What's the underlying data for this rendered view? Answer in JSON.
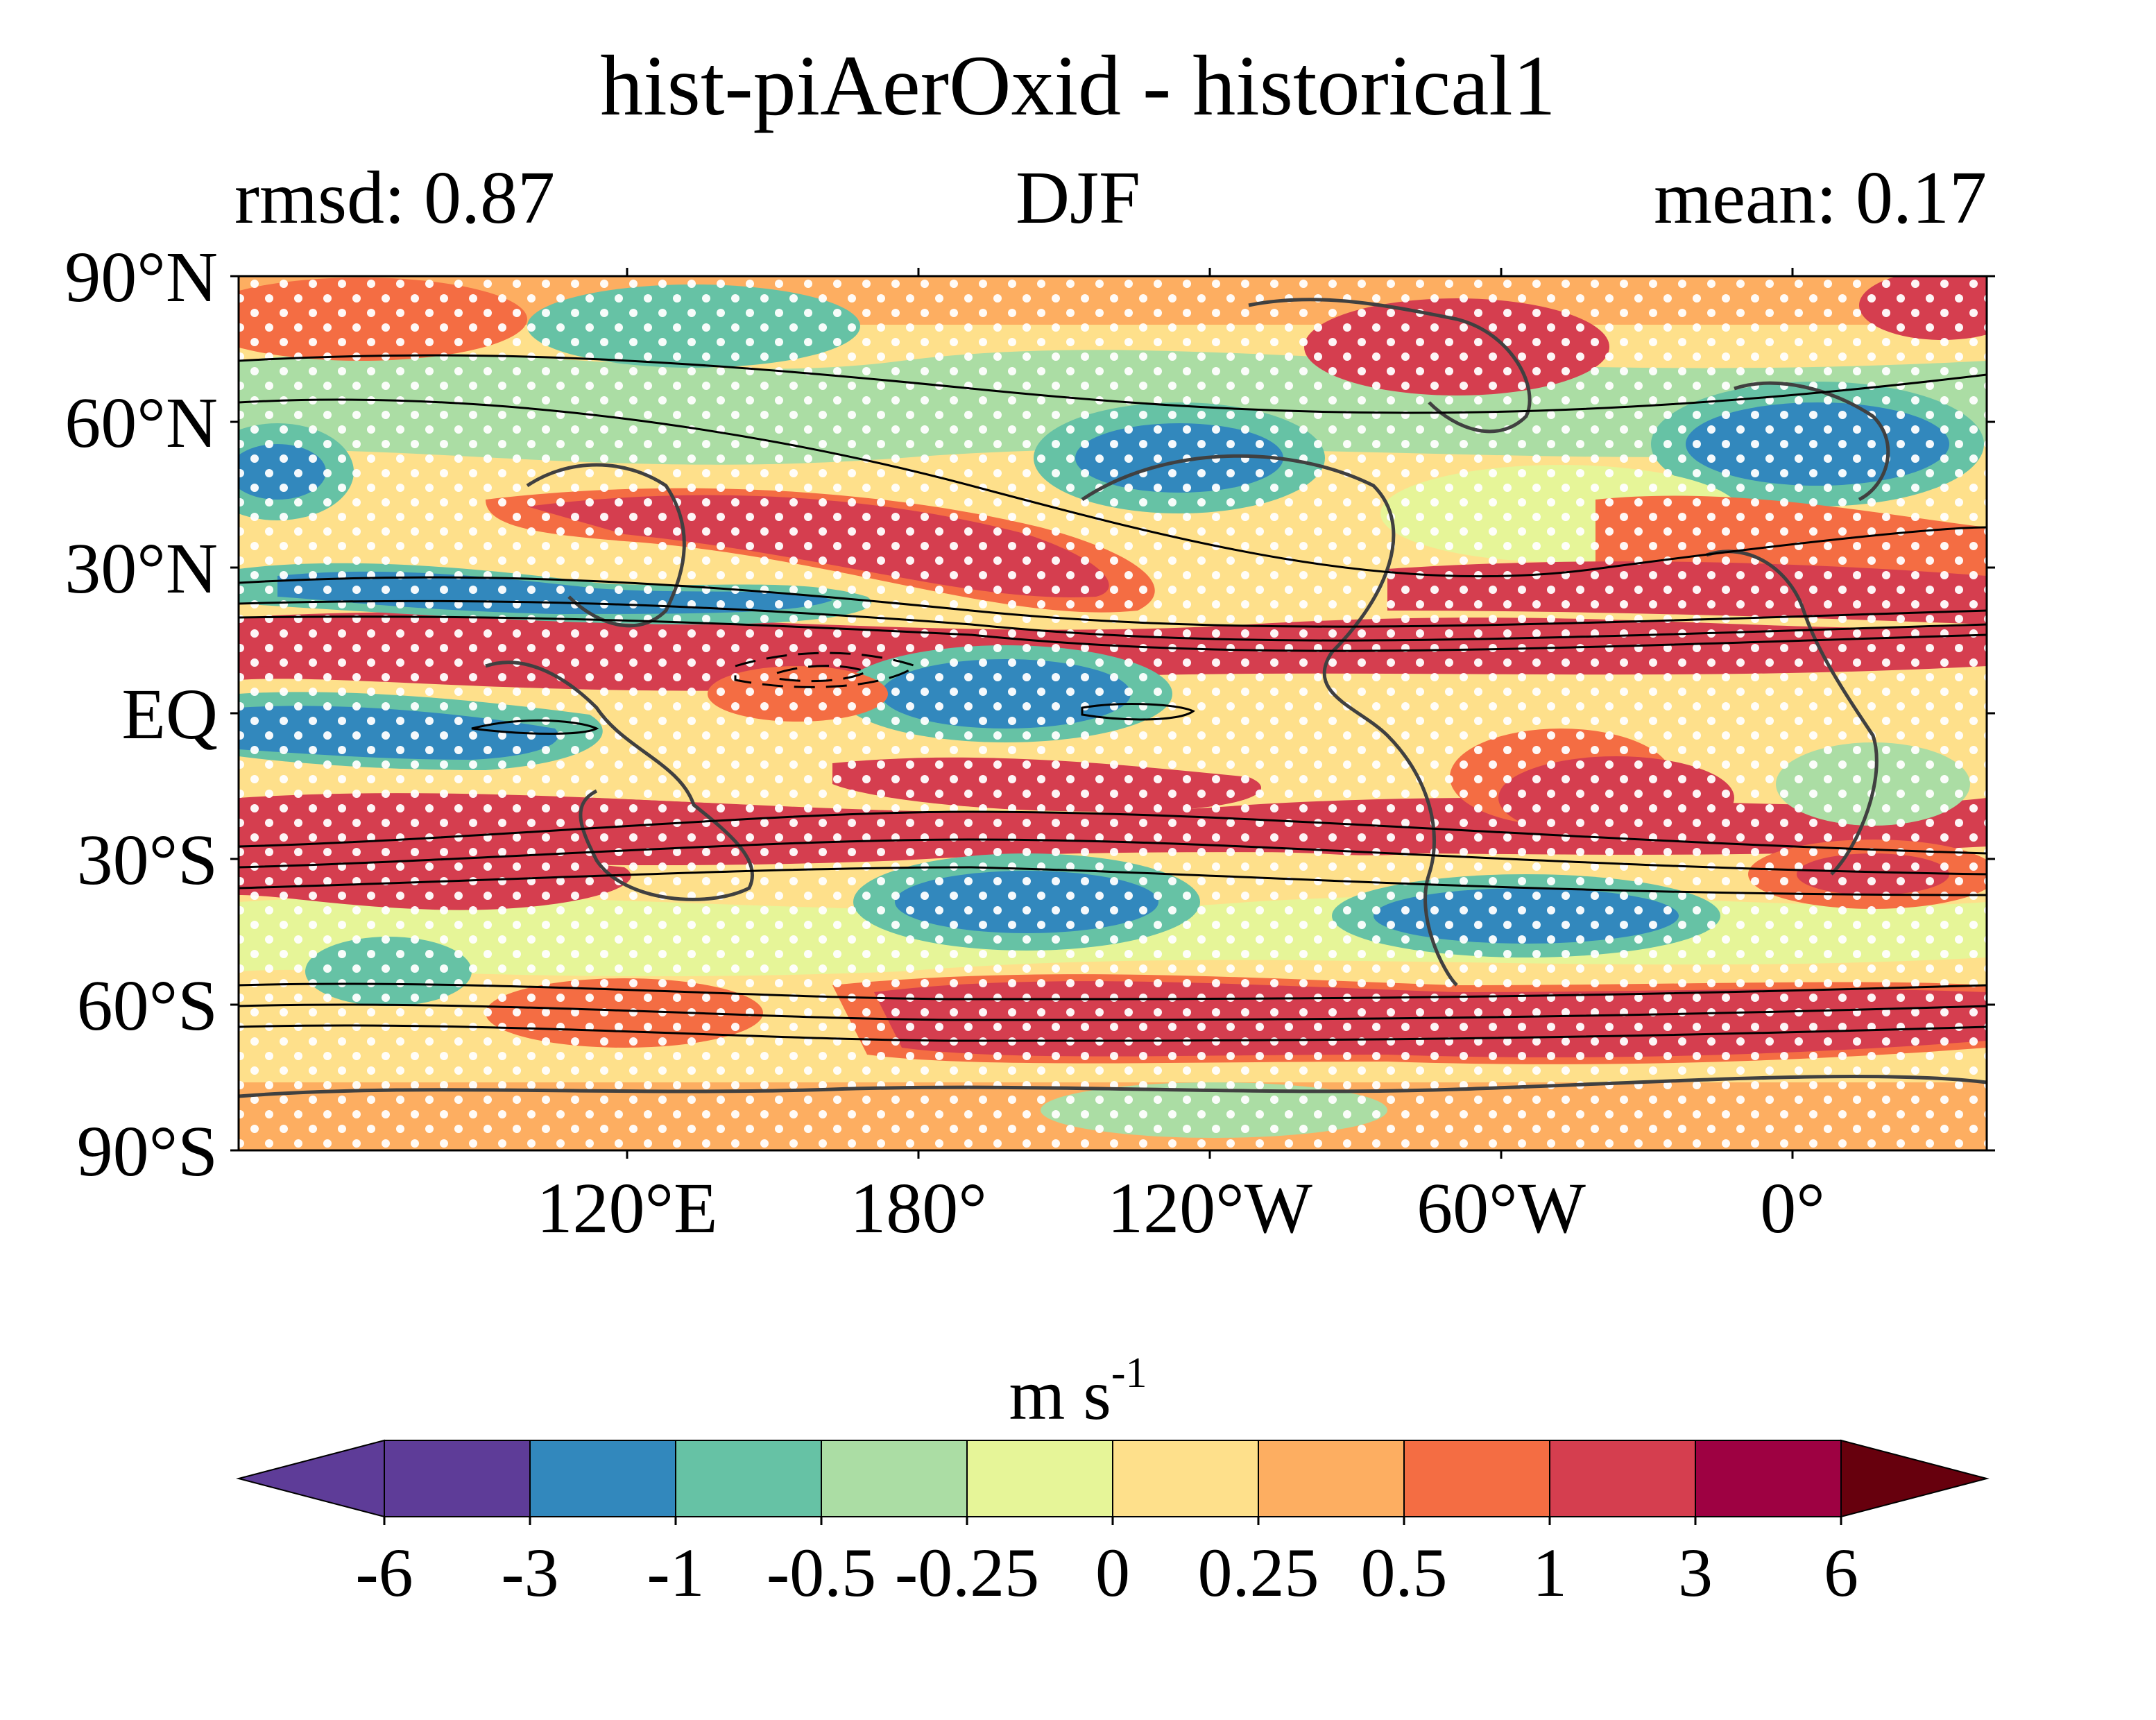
{
  "title": "hist-piAerOxid - historical1",
  "subtitle_left": "rmsd: 0.87",
  "subtitle_center": "DJF",
  "subtitle_right": "mean: 0.17",
  "map": {
    "projection": "PlateCarree, central longitude 180°E-ish (x from 30°E to 390°E)",
    "lat_ticks": [
      "90°N",
      "60°N",
      "30°N",
      "EQ",
      "30°S",
      "60°S",
      "90°S"
    ],
    "lon_ticks": [
      "120°E",
      "180°",
      "120°W",
      "60°W",
      "0°"
    ],
    "features": [
      "coastlines",
      "stippling (significance dots)",
      "climatology contours (solid positive, dashed negative)"
    ]
  },
  "colorbar": {
    "unit_base": "m s",
    "unit_exp": "-1",
    "tick_labels": [
      "-6",
      "-3",
      "-1",
      "-0.5",
      "-0.25",
      "0",
      "0.25",
      "0.5",
      "1",
      "3",
      "6"
    ],
    "colors": [
      "#5e3c98",
      "#3288bd",
      "#66c2a5",
      "#abdda4",
      "#e6f598",
      "#fee08b",
      "#fdae61",
      "#f46d43",
      "#d53e4f",
      "#9e0142"
    ],
    "extend_low_color": "#5e3c98",
    "extend_high_color": "#67000d"
  }
}
